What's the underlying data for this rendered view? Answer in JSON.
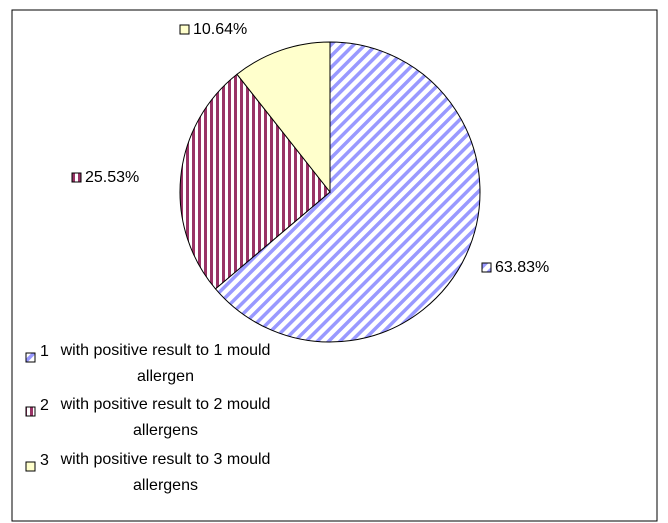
{
  "chart_data": {
    "type": "pie",
    "categories": [
      "1",
      "2",
      "3"
    ],
    "descriptions": [
      "with positive result to 1 mould allergen",
      "with positive result to 2 mould allergens",
      "with positive result to 3 mould allergens"
    ],
    "values": [
      63.83,
      25.53,
      10.64
    ],
    "value_labels": [
      "63.83%",
      "25.53%",
      "10.64%"
    ],
    "colors": [
      "#9999ff",
      "#993366",
      "#ffffcc"
    ]
  }
}
